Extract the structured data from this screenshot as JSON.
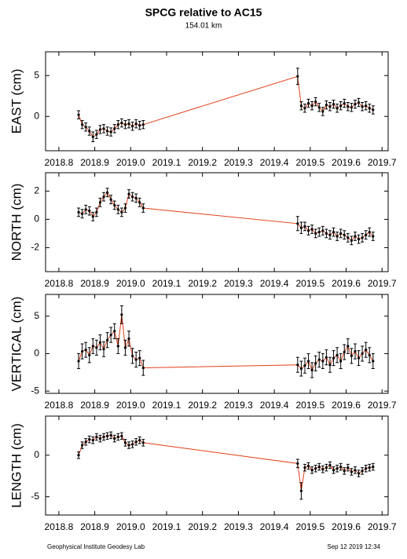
{
  "title": "SPCG relative to AC15",
  "subtitle": "154.01 km",
  "footer": {
    "left": "Geophysical Institute Geodesy Lab",
    "right": "Sep 12 2019 12:34"
  },
  "chart_data": [
    {
      "type": "scatter",
      "ylabel": "EAST (cm)",
      "x": [
        2018.855,
        2018.865,
        2018.875,
        2018.885,
        2018.895,
        2018.905,
        2018.915,
        2018.925,
        2018.935,
        2018.945,
        2018.955,
        2018.965,
        2018.975,
        2018.985,
        2018.995,
        2019.005,
        2019.015,
        2019.025,
        2019.035,
        2019.465,
        2019.475,
        2019.485,
        2019.495,
        2019.505,
        2019.515,
        2019.525,
        2019.535,
        2019.545,
        2019.555,
        2019.565,
        2019.575,
        2019.585,
        2019.595,
        2019.605,
        2019.615,
        2019.625,
        2019.635,
        2019.645,
        2019.655,
        2019.665,
        2019.675
      ],
      "values": [
        0.2,
        -1.0,
        -1.3,
        -1.8,
        -2.5,
        -2.2,
        -1.6,
        -1.5,
        -1.8,
        -1.9,
        -1.5,
        -1.0,
        -0.8,
        -1.0,
        -0.9,
        -1.2,
        -0.9,
        -1.1,
        -1.0,
        4.9,
        1.3,
        1.0,
        1.6,
        1.3,
        1.8,
        1.1,
        0.6,
        1.4,
        1.2,
        1.5,
        1.0,
        1.3,
        1.6,
        1.2,
        1.1,
        1.5,
        1.7,
        1.2,
        1.3,
        1.0,
        0.8
      ],
      "errors": [
        0.5,
        0.5,
        0.5,
        0.5,
        0.6,
        0.5,
        0.5,
        0.5,
        0.5,
        0.5,
        0.5,
        0.5,
        0.5,
        0.5,
        0.5,
        0.5,
        0.5,
        0.5,
        0.5,
        1.0,
        0.5,
        0.5,
        0.5,
        0.5,
        0.5,
        0.5,
        0.5,
        0.5,
        0.5,
        0.5,
        0.5,
        0.5,
        0.5,
        0.5,
        0.5,
        0.5,
        0.5,
        0.5,
        0.5,
        0.5,
        0.5
      ],
      "color": "#000000",
      "line_color": "#e0401a",
      "xlim": [
        2018.763,
        2019.717
      ],
      "xticks": [
        2018.8,
        2018.9,
        {
          "value": 2019.0,
          "label": "2019.0"
        },
        2019.1,
        2019.2,
        2019.3,
        2019.4,
        2019.5,
        2019.6,
        2019.7
      ],
      "ylim": [
        -4.2,
        7.9
      ],
      "yticks": [
        0,
        5
      ]
    },
    {
      "type": "scatter",
      "ylabel": "NORTH (cm)",
      "x": [
        2018.855,
        2018.865,
        2018.875,
        2018.885,
        2018.895,
        2018.905,
        2018.915,
        2018.925,
        2018.935,
        2018.945,
        2018.955,
        2018.965,
        2018.975,
        2018.985,
        2018.995,
        2019.005,
        2019.015,
        2019.025,
        2019.035,
        2019.465,
        2019.475,
        2019.485,
        2019.495,
        2019.505,
        2019.515,
        2019.525,
        2019.535,
        2019.545,
        2019.555,
        2019.565,
        2019.575,
        2019.585,
        2019.595,
        2019.605,
        2019.615,
        2019.625,
        2019.635,
        2019.645,
        2019.655,
        2019.665,
        2019.675
      ],
      "values": [
        0.5,
        0.4,
        0.7,
        0.6,
        0.2,
        0.5,
        1.2,
        1.6,
        1.9,
        1.4,
        1.0,
        0.7,
        0.5,
        0.8,
        1.8,
        1.6,
        1.5,
        1.2,
        0.8,
        -0.3,
        -0.6,
        -0.5,
        -0.8,
        -0.7,
        -1.0,
        -0.9,
        -0.8,
        -1.0,
        -1.1,
        -0.9,
        -1.2,
        -1.0,
        -1.1,
        -1.3,
        -1.5,
        -1.2,
        -1.4,
        -1.3,
        -1.1,
        -0.9,
        -1.2
      ],
      "errors": [
        0.3,
        0.3,
        0.3,
        0.3,
        0.3,
        0.3,
        0.3,
        0.3,
        0.3,
        0.3,
        0.3,
        0.3,
        0.3,
        0.3,
        0.3,
        0.3,
        0.3,
        0.3,
        0.3,
        0.5,
        0.4,
        0.3,
        0.3,
        0.3,
        0.3,
        0.3,
        0.3,
        0.3,
        0.3,
        0.3,
        0.3,
        0.3,
        0.3,
        0.3,
        0.3,
        0.3,
        0.3,
        0.3,
        0.3,
        0.3,
        0.3
      ],
      "color": "#000000",
      "line_color": "#e0401a",
      "xlim": [
        2018.763,
        2019.717
      ],
      "xticks": [
        2018.8,
        2018.9,
        {
          "value": 2019.0,
          "label": "2019.0"
        },
        2019.1,
        2019.2,
        2019.3,
        2019.4,
        2019.5,
        2019.6,
        2019.7
      ],
      "ylim": [
        -3.7,
        3.3
      ],
      "yticks": [
        -2,
        0,
        2
      ]
    },
    {
      "type": "scatter",
      "ylabel": "VERTICAL (cm)",
      "x": [
        2018.855,
        2018.865,
        2018.875,
        2018.885,
        2018.895,
        2018.905,
        2018.915,
        2018.925,
        2018.935,
        2018.945,
        2018.955,
        2018.965,
        2018.975,
        2018.985,
        2018.995,
        2019.005,
        2019.015,
        2019.025,
        2019.035,
        2019.465,
        2019.475,
        2019.485,
        2019.495,
        2019.505,
        2019.515,
        2019.525,
        2019.535,
        2019.545,
        2019.555,
        2019.565,
        2019.575,
        2019.585,
        2019.595,
        2019.605,
        2019.615,
        2019.625,
        2019.635,
        2019.645,
        2019.655,
        2019.665,
        2019.675
      ],
      "values": [
        -1.0,
        0.3,
        0.5,
        -0.2,
        1.0,
        0.8,
        1.5,
        0.6,
        1.8,
        2.5,
        3.0,
        1.0,
        5.2,
        0.8,
        2.0,
        -0.3,
        -0.8,
        -0.6,
        -1.9,
        -1.5,
        -2.0,
        -1.6,
        -1.0,
        -2.2,
        -1.3,
        -0.8,
        -1.0,
        -0.5,
        -1.5,
        -0.6,
        -0.2,
        -1.0,
        0.2,
        1.0,
        -0.3,
        0.3,
        -0.6,
        0.0,
        0.5,
        -0.2,
        -1.0
      ],
      "errors": [
        1.0,
        1.0,
        1.0,
        1.0,
        1.0,
        1.0,
        1.0,
        1.0,
        1.0,
        1.0,
        1.0,
        1.0,
        1.2,
        1.0,
        1.0,
        1.0,
        1.0,
        1.0,
        1.0,
        1.0,
        1.0,
        1.0,
        1.0,
        1.0,
        1.0,
        1.0,
        1.0,
        1.0,
        1.0,
        1.0,
        1.0,
        1.0,
        1.0,
        1.0,
        1.0,
        1.0,
        1.0,
        1.0,
        1.0,
        1.0,
        1.0
      ],
      "color": "#000000",
      "line_color": "#e0401a",
      "xlim": [
        2018.763,
        2019.717
      ],
      "xticks": [
        2018.8,
        2018.9,
        {
          "value": 2019.0,
          "label": "2019.0"
        },
        2019.1,
        2019.2,
        2019.3,
        2019.4,
        2019.5,
        2019.6,
        2019.7
      ],
      "ylim": [
        -5.3,
        7.9
      ],
      "yticks": [
        -5,
        0,
        5
      ]
    },
    {
      "type": "scatter",
      "ylabel": "LENGTH (cm)",
      "x": [
        2018.855,
        2018.865,
        2018.875,
        2018.885,
        2018.895,
        2018.905,
        2018.915,
        2018.925,
        2018.935,
        2018.945,
        2018.955,
        2018.965,
        2018.975,
        2018.985,
        2018.995,
        2019.005,
        2019.015,
        2019.025,
        2019.035,
        2019.465,
        2019.475,
        2019.485,
        2019.495,
        2019.505,
        2019.515,
        2019.525,
        2019.535,
        2019.545,
        2019.555,
        2019.565,
        2019.575,
        2019.585,
        2019.595,
        2019.605,
        2019.615,
        2019.625,
        2019.635,
        2019.645,
        2019.655,
        2019.665,
        2019.675
      ],
      "values": [
        0.0,
        1.2,
        1.6,
        1.9,
        1.8,
        2.2,
        2.0,
        2.2,
        2.3,
        2.4,
        2.0,
        2.2,
        2.3,
        1.5,
        1.2,
        1.3,
        1.6,
        1.8,
        1.5,
        -1.0,
        -4.3,
        -1.5,
        -1.3,
        -1.8,
        -1.6,
        -1.4,
        -1.7,
        -1.5,
        -1.2,
        -1.8,
        -1.6,
        -1.4,
        -1.9,
        -1.5,
        -2.0,
        -1.8,
        -2.2,
        -1.9,
        -1.6,
        -1.5,
        -1.4
      ],
      "errors": [
        0.4,
        0.4,
        0.4,
        0.4,
        0.4,
        0.4,
        0.4,
        0.4,
        0.4,
        0.4,
        0.4,
        0.4,
        0.4,
        0.4,
        0.4,
        0.4,
        0.4,
        0.4,
        0.4,
        0.5,
        1.0,
        0.4,
        0.4,
        0.4,
        0.4,
        0.4,
        0.4,
        0.4,
        0.4,
        0.4,
        0.4,
        0.4,
        0.4,
        0.4,
        0.4,
        0.4,
        0.4,
        0.4,
        0.4,
        0.4,
        0.4
      ],
      "color": "#000000",
      "line_color": "#e0401a",
      "xlim": [
        2018.763,
        2019.717
      ],
      "xticks": [
        2018.8,
        2018.9,
        {
          "value": 2019.0,
          "label": "2019.0"
        },
        2019.1,
        2019.2,
        2019.3,
        2019.4,
        2019.5,
        2019.6,
        2019.7
      ],
      "ylim": [
        -7.2,
        4.7
      ],
      "yticks": [
        -5,
        0
      ]
    }
  ]
}
